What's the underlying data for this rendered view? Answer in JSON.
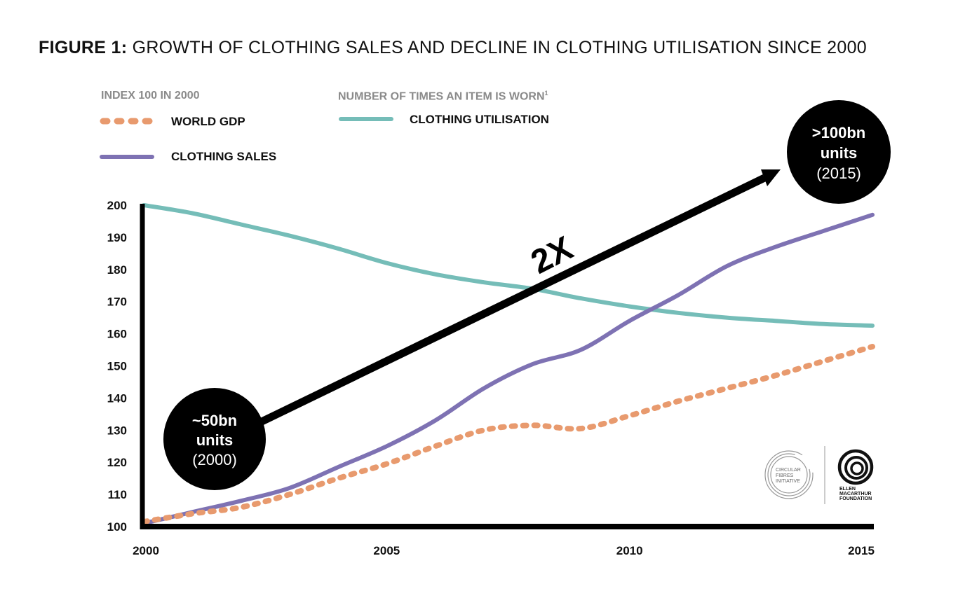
{
  "title": {
    "prefix": "FIGURE 1:",
    "text": "GROWTH OF CLOTHING SALES AND DECLINE IN CLOTHING UTILISATION SINCE 2000"
  },
  "legend": {
    "left_heading": "INDEX 100 IN 2000",
    "right_heading": "NUMBER OF TIMES AN ITEM IS WORN",
    "right_heading_sup": "1",
    "items": [
      {
        "label": "WORLD GDP",
        "style": "dotted",
        "color": "#E89A6E"
      },
      {
        "label": "CLOTHING SALES",
        "style": "solid",
        "color": "#7E72B3"
      },
      {
        "label": "CLOTHING UTILISATION",
        "style": "solid",
        "color": "#75BDB8"
      }
    ]
  },
  "annotations": {
    "start_bubble": {
      "line1": "~50bn",
      "line2": "units",
      "line3": "(2000)"
    },
    "end_bubble": {
      "line1": ">100bn",
      "line2": "units",
      "line3": "(2015)"
    },
    "arrow_label": "2X"
  },
  "logos": {
    "cfi": [
      "CIRCULAR",
      "FIBRES",
      "INITIATIVE"
    ],
    "emf": [
      "ELLEN",
      "MACARTHUR",
      "FOUNDATION"
    ]
  },
  "chart_data": {
    "type": "line",
    "title": "GROWTH OF CLOTHING SALES AND DECLINE IN CLOTHING UTILISATION SINCE 2000",
    "xlabel": "",
    "ylabel": "INDEX 100 IN 2000",
    "x": [
      2000,
      2001,
      2002,
      2003,
      2004,
      2005,
      2006,
      2007,
      2008,
      2009,
      2010,
      2011,
      2012,
      2013,
      2014,
      2015
    ],
    "xlim": [
      2000,
      2015
    ],
    "ylim": [
      100,
      200
    ],
    "x_ticks": [
      "2000",
      "2005",
      "2010",
      "2015"
    ],
    "x_tick_values": [
      2000,
      2005,
      2010,
      2015
    ],
    "y_ticks": [
      "100",
      "110",
      "120",
      "130",
      "140",
      "150",
      "160",
      "170",
      "180",
      "190",
      "200"
    ],
    "y_tick_values": [
      100,
      110,
      120,
      130,
      140,
      150,
      160,
      170,
      180,
      190,
      200
    ],
    "grid": false,
    "legend_position": "top-left",
    "series": [
      {
        "name": "CLOTHING UTILISATION",
        "color": "#75BDB8",
        "dash": "solid",
        "values": [
          200,
          197.5,
          194,
          190.5,
          186.5,
          182,
          178.5,
          176,
          174,
          171,
          168.5,
          166.5,
          165,
          164,
          163,
          162.5
        ]
      },
      {
        "name": "CLOTHING SALES",
        "color": "#7E72B3",
        "dash": "solid",
        "values": [
          101,
          104.5,
          108,
          112,
          118.5,
          125,
          133,
          143,
          150.5,
          155,
          164,
          172,
          181,
          187,
          192,
          197
        ]
      },
      {
        "name": "WORLD GDP",
        "color": "#E89A6E",
        "dash": "dotted",
        "values": [
          101.5,
          104,
          106,
          110,
          115,
          119.5,
          125,
          130,
          131.5,
          130.5,
          134.5,
          139,
          143,
          147,
          151.5,
          156
        ]
      }
    ]
  }
}
